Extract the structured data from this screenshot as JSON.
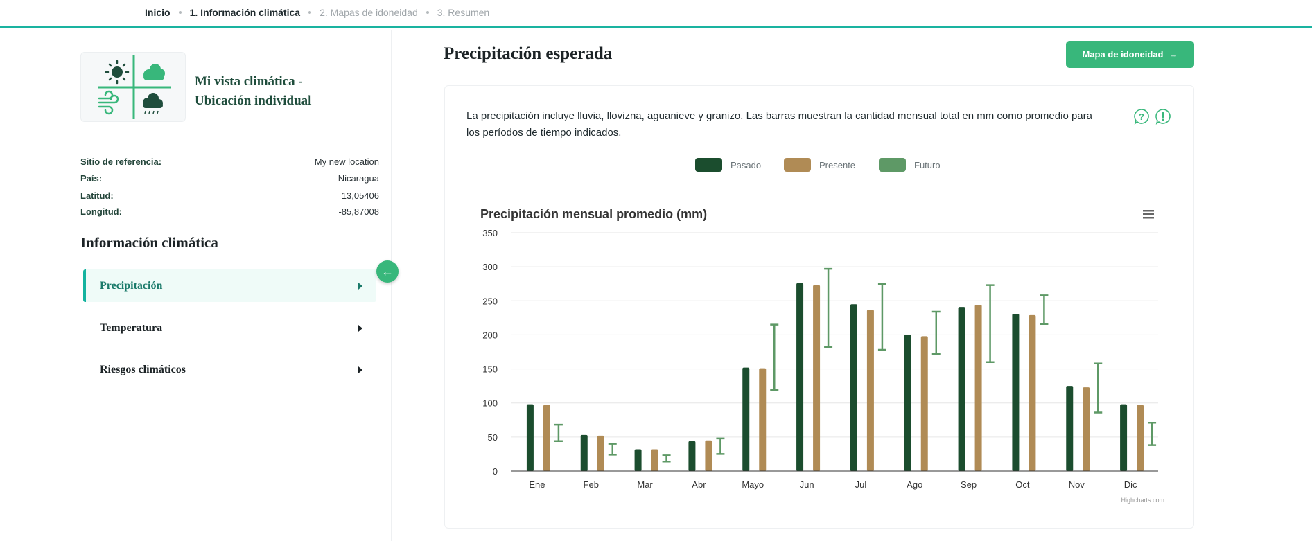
{
  "nav": {
    "items": [
      {
        "label": "Inicio",
        "state": "done"
      },
      {
        "label": "1. Información climática",
        "state": "current"
      },
      {
        "label": "2. Mapas de idoneidad",
        "state": "upcoming"
      },
      {
        "label": "3. Resumen",
        "state": "upcoming"
      }
    ]
  },
  "sidebar": {
    "site_title_line1": "Mi vista climática -",
    "site_title_line2": "Ubicación individual",
    "info": [
      {
        "label": "Sitio de referencia:",
        "value": "My new location"
      },
      {
        "label": "País:",
        "value": "Nicaragua"
      },
      {
        "label": "Latitud:",
        "value": "13,05406"
      },
      {
        "label": "Longitud:",
        "value": "-85,87008"
      }
    ],
    "heading": "Información climática",
    "menu": [
      {
        "label": "Precipitación",
        "active": true
      },
      {
        "label": "Temperatura",
        "active": false
      },
      {
        "label": "Riesgos climáticos",
        "active": false
      }
    ],
    "collapse_icon": "arrow-left-icon"
  },
  "main": {
    "title": "Precipitación esperada",
    "button_label": "Mapa de idoneidad",
    "button_icon": "arrow-right-icon",
    "description": "La precipitación incluye lluvia, llovizna, aguanieve y granizo. Las barras muestran la cantidad mensual total en mm como promedio para los períodos de tiempo indicados.",
    "icons": [
      "help-bubble-icon",
      "alert-bubble-icon"
    ]
  },
  "colors": {
    "accent": "#1ab3a0",
    "button": "#38b77b",
    "past": "#1b4d2e",
    "present": "#b08b55",
    "future": "#5e9966"
  },
  "legend": [
    {
      "label": "Pasado",
      "color": "#1b4d2e"
    },
    {
      "label": "Presente",
      "color": "#b08b55"
    },
    {
      "label": "Futuro",
      "color": "#5e9966"
    }
  ],
  "chart_data": {
    "type": "bar",
    "title": "Precipitación mensual promedio (mm)",
    "categories": [
      "Ene",
      "Feb",
      "Mar",
      "Abr",
      "Mayo",
      "Jun",
      "Jul",
      "Ago",
      "Sep",
      "Oct",
      "Nov",
      "Dic"
    ],
    "ylim": [
      0,
      350
    ],
    "yticks": [
      0,
      50,
      100,
      150,
      200,
      250,
      300,
      350
    ],
    "grid": true,
    "series": [
      {
        "name": "Pasado",
        "type": "bar",
        "values": [
          98,
          53,
          32,
          44,
          152,
          276,
          245,
          200,
          241,
          231,
          125,
          98
        ]
      },
      {
        "name": "Presente",
        "type": "bar",
        "values": [
          97,
          52,
          32,
          45,
          151,
          273,
          237,
          198,
          244,
          229,
          123,
          97
        ]
      },
      {
        "name": "Futuro",
        "type": "errorbar",
        "low": [
          44,
          24,
          14,
          25,
          119,
          182,
          178,
          172,
          160,
          216,
          86,
          38
        ],
        "high": [
          68,
          40,
          23,
          48,
          215,
          297,
          275,
          234,
          273,
          258,
          158,
          71
        ]
      }
    ],
    "credit": "Highcharts.com",
    "menu_icon": "hamburger-menu-icon"
  }
}
